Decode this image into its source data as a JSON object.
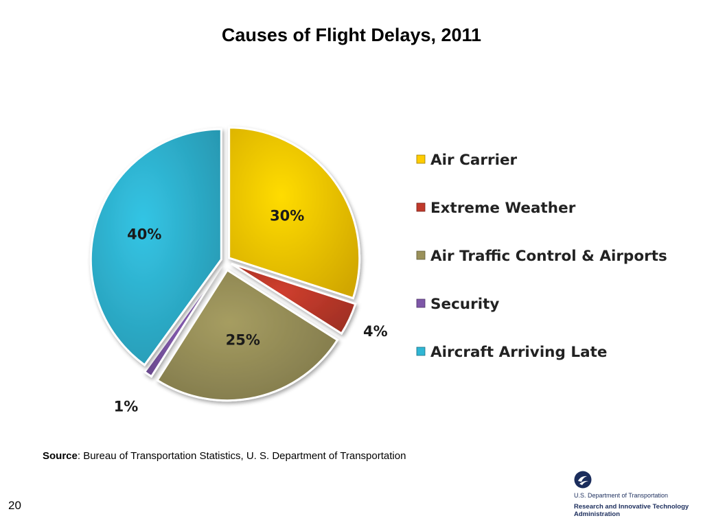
{
  "slide": {
    "title": "Causes of Flight Delays, 2011",
    "source_label": "Source",
    "source_text": ": Bureau of Transportation Statistics, U. S. Department of Transportation",
    "page_number": "20"
  },
  "logo": {
    "icon": "dot-emblem-icon",
    "org_name": "U.S. Department of Transportation",
    "admin_name": "Research and Innovative Technology Administration"
  },
  "chart_data": {
    "type": "pie",
    "title": "Causes of Flight Delays, 2011",
    "legend_position": "right",
    "categories": [
      "Air Carrier",
      "Extreme Weather",
      "Air Traffic Control & Airports",
      "Security",
      "Aircraft Arriving Late"
    ],
    "values": [
      30,
      4,
      25,
      1,
      40
    ],
    "labels": [
      "30%",
      "4%",
      "25%",
      "1%",
      "40%"
    ],
    "colors": [
      "#FFCC00",
      "#C0392B",
      "#9A915A",
      "#7E57A8",
      "#2FB6D4"
    ],
    "exploded": true
  }
}
